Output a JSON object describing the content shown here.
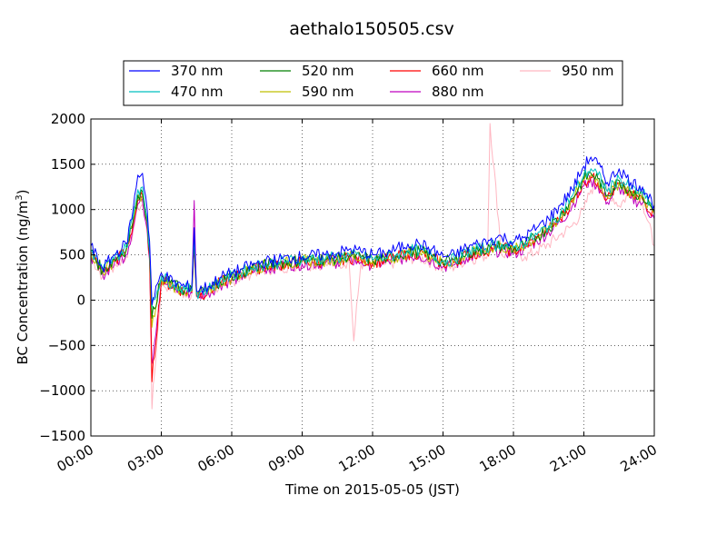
{
  "chart_data": {
    "type": "line",
    "title": "aethalo150505.csv",
    "xlabel": "Time on 2015-05-05 (JST)",
    "ylabel": "BC Concentration (ng/m",
    "ylabel_sup": "3",
    "ylabel_close": ")",
    "x_unit": "hours",
    "xlim": [
      0,
      24
    ],
    "ylim": [
      -1500,
      2000
    ],
    "x_ticks": [
      {
        "value": 0,
        "label": "00:00"
      },
      {
        "value": 3,
        "label": "03:00"
      },
      {
        "value": 6,
        "label": "06:00"
      },
      {
        "value": 9,
        "label": "09:00"
      },
      {
        "value": 12,
        "label": "12:00"
      },
      {
        "value": 15,
        "label": "15:00"
      },
      {
        "value": 18,
        "label": "18:00"
      },
      {
        "value": 21,
        "label": "21:00"
      },
      {
        "value": 24,
        "label": "24:00"
      }
    ],
    "y_ticks": [
      {
        "value": 2000,
        "label": "2000"
      },
      {
        "value": 1500,
        "label": "1500"
      },
      {
        "value": 1000,
        "label": "1000"
      },
      {
        "value": 500,
        "label": "500"
      },
      {
        "value": 0,
        "label": "0"
      },
      {
        "value": -500,
        "label": "−500"
      },
      {
        "value": -1000,
        "label": "−1000"
      },
      {
        "value": -1500,
        "label": "−1500"
      }
    ],
    "grid": true,
    "legend_position": "top",
    "series": [
      {
        "name": "370 nm",
        "color": "#0000ff",
        "x": [
          0,
          0.5,
          1,
          1.5,
          1.8,
          2,
          2.2,
          2.4,
          2.5,
          2.6,
          3,
          3.5,
          4,
          4.3,
          4.4,
          4.5,
          5,
          5.5,
          6,
          6.5,
          7,
          8,
          9,
          10,
          10.5,
          11,
          11.5,
          12,
          12.5,
          13,
          13.5,
          14,
          14.5,
          15,
          15.5,
          16,
          16.5,
          17,
          17.5,
          18,
          18.5,
          19,
          19.5,
          20,
          20.5,
          21,
          21.3,
          21.6,
          22,
          22.5,
          23,
          23.5,
          24
        ],
        "y": [
          600,
          350,
          500,
          620,
          1000,
          1380,
          1400,
          1000,
          650,
          -50,
          300,
          200,
          150,
          150,
          800,
          100,
          150,
          250,
          300,
          350,
          400,
          450,
          480,
          500,
          520,
          560,
          540,
          500,
          520,
          560,
          620,
          620,
          560,
          480,
          500,
          580,
          620,
          660,
          700,
          640,
          700,
          800,
          900,
          1050,
          1220,
          1480,
          1580,
          1500,
          1300,
          1450,
          1300,
          1250,
          1050
        ]
      },
      {
        "name": "470 nm",
        "color": "#00bfbf",
        "x": [
          0,
          0.5,
          1,
          1.5,
          1.8,
          2,
          2.2,
          2.4,
          2.5,
          2.6,
          3,
          3.5,
          4,
          4.3,
          4.4,
          4.5,
          5,
          5.5,
          6,
          6.5,
          7,
          8,
          9,
          10,
          10.5,
          11,
          11.5,
          12,
          12.5,
          13,
          13.5,
          14,
          14.5,
          15,
          15.5,
          16,
          16.5,
          17,
          17.5,
          18,
          18.5,
          19,
          19.5,
          20,
          20.5,
          21,
          21.3,
          21.6,
          22,
          22.5,
          23,
          23.5,
          24
        ],
        "y": [
          560,
          330,
          460,
          580,
          920,
          1220,
          1250,
          900,
          550,
          -80,
          260,
          180,
          120,
          120,
          700,
          80,
          120,
          220,
          270,
          320,
          380,
          420,
          450,
          460,
          470,
          500,
          480,
          450,
          470,
          500,
          550,
          550,
          500,
          430,
          450,
          530,
          560,
          600,
          620,
          580,
          640,
          720,
          820,
          960,
          1150,
          1380,
          1450,
          1380,
          1200,
          1350,
          1230,
          1180,
          1000
        ]
      },
      {
        "name": "520 nm",
        "color": "#007f00",
        "x": [
          0,
          0.5,
          1,
          1.5,
          1.8,
          2,
          2.2,
          2.4,
          2.5,
          2.6,
          3,
          3.5,
          4,
          4.3,
          4.4,
          4.5,
          5,
          5.5,
          6,
          6.5,
          7,
          8,
          9,
          10,
          10.5,
          11,
          11.5,
          12,
          12.5,
          13,
          13.5,
          14,
          14.5,
          15,
          15.5,
          16,
          16.5,
          17,
          17.5,
          18,
          18.5,
          19,
          19.5,
          20,
          20.5,
          21,
          21.3,
          21.6,
          22,
          22.5,
          23,
          23.5,
          24
        ],
        "y": [
          540,
          320,
          450,
          560,
          880,
          1160,
          1200,
          860,
          520,
          -200,
          240,
          170,
          110,
          110,
          650,
          70,
          110,
          210,
          260,
          310,
          370,
          410,
          440,
          450,
          460,
          490,
          470,
          440,
          460,
          490,
          530,
          540,
          490,
          420,
          440,
          520,
          540,
          580,
          600,
          560,
          620,
          700,
          800,
          930,
          1120,
          1340,
          1400,
          1340,
          1160,
          1320,
          1200,
          1150,
          980
        ]
      },
      {
        "name": "590 nm",
        "color": "#bfbf00",
        "x": [
          0,
          0.5,
          1,
          1.5,
          1.8,
          2,
          2.2,
          2.4,
          2.5,
          2.6,
          3,
          3.5,
          4,
          4.3,
          4.4,
          4.5,
          5,
          5.5,
          6,
          6.5,
          7,
          8,
          9,
          10,
          10.5,
          11,
          11.5,
          12,
          12.5,
          13,
          13.5,
          14,
          14.5,
          15,
          15.5,
          16,
          16.5,
          17,
          17.5,
          18,
          18.5,
          19,
          19.5,
          20,
          20.5,
          21,
          21.3,
          21.6,
          22,
          22.5,
          23,
          23.5,
          24
        ],
        "y": [
          530,
          310,
          440,
          550,
          860,
          1130,
          1170,
          840,
          500,
          -300,
          230,
          160,
          100,
          100,
          620,
          60,
          100,
          200,
          250,
          300,
          360,
          400,
          430,
          440,
          450,
          480,
          460,
          430,
          450,
          480,
          520,
          530,
          480,
          410,
          430,
          510,
          530,
          570,
          590,
          550,
          610,
          690,
          790,
          910,
          1100,
          1320,
          1380,
          1320,
          1140,
          1300,
          1180,
          1130,
          960
        ]
      },
      {
        "name": "660 nm",
        "color": "#ff0000",
        "x": [
          0,
          0.5,
          1,
          1.5,
          1.8,
          2,
          2.2,
          2.4,
          2.5,
          2.6,
          3,
          3.5,
          4,
          4.3,
          4.4,
          4.5,
          5,
          5.5,
          6,
          6.5,
          7,
          8,
          9,
          10,
          10.5,
          11,
          11.5,
          12,
          12.5,
          13,
          13.5,
          14,
          14.5,
          15,
          15.5,
          16,
          16.5,
          17,
          17.5,
          18,
          18.5,
          19,
          19.5,
          20,
          20.5,
          21,
          21.3,
          21.6,
          22,
          22.5,
          23,
          23.5,
          24
        ],
        "y": [
          520,
          300,
          430,
          540,
          840,
          1100,
          1150,
          820,
          480,
          -900,
          220,
          150,
          90,
          90,
          600,
          50,
          90,
          190,
          240,
          290,
          350,
          390,
          420,
          430,
          440,
          470,
          450,
          420,
          440,
          470,
          510,
          520,
          470,
          400,
          420,
          500,
          520,
          560,
          580,
          540,
          600,
          680,
          780,
          900,
          1080,
          1300,
          1360,
          1300,
          1120,
          1280,
          1160,
          1110,
          950
        ]
      },
      {
        "name": "880 nm",
        "color": "#bf00bf",
        "x": [
          0,
          0.5,
          1,
          1.5,
          1.8,
          2,
          2.2,
          2.4,
          2.5,
          2.6,
          3,
          3.5,
          4,
          4.3,
          4.4,
          4.5,
          5,
          5.5,
          6,
          6.5,
          7,
          8,
          9,
          10,
          10.5,
          11,
          11.5,
          12,
          12.5,
          13,
          13.5,
          14,
          14.5,
          15,
          15.5,
          16,
          16.5,
          17,
          17.5,
          18,
          18.5,
          19,
          19.5,
          20,
          20.5,
          21,
          21.3,
          21.6,
          22,
          22.5,
          23,
          23.5,
          24
        ],
        "y": [
          500,
          280,
          400,
          500,
          800,
          1060,
          1100,
          780,
          450,
          -700,
          200,
          140,
          80,
          80,
          1100,
          40,
          80,
          170,
          220,
          270,
          330,
          370,
          400,
          410,
          420,
          440,
          420,
          390,
          410,
          440,
          480,
          490,
          440,
          370,
          390,
          470,
          490,
          530,
          550,
          510,
          570,
          650,
          750,
          860,
          1040,
          1260,
          1320,
          1260,
          1080,
          1240,
          1120,
          1070,
          900
        ]
      },
      {
        "name": "950 nm",
        "color": "#ffb6c1",
        "x": [
          0,
          0.5,
          1,
          1.5,
          1.8,
          2,
          2.2,
          2.4,
          2.5,
          2.6,
          3,
          3.5,
          4,
          4.3,
          4.4,
          4.5,
          5,
          5.5,
          6,
          6.5,
          7,
          8,
          9,
          10,
          10.5,
          11,
          11.2,
          11.5,
          12,
          12.5,
          13,
          13.5,
          14,
          14.5,
          15,
          15.5,
          16,
          16.5,
          16.9,
          17,
          17.5,
          18,
          18.5,
          19,
          19.5,
          20,
          20.5,
          21,
          21.3,
          21.6,
          22,
          22.5,
          23,
          23.5,
          24
        ],
        "y": [
          480,
          260,
          380,
          480,
          760,
          1020,
          1060,
          740,
          420,
          -1200,
          180,
          130,
          70,
          70,
          700,
          30,
          70,
          160,
          210,
          260,
          320,
          360,
          390,
          400,
          410,
          420,
          -450,
          400,
          370,
          390,
          420,
          460,
          470,
          420,
          350,
          370,
          450,
          470,
          500,
          1950,
          500,
          520,
          480,
          540,
          620,
          720,
          820,
          1000,
          1220,
          1280,
          1220,
          1040,
          1200,
          1080,
          600
        ]
      }
    ]
  }
}
